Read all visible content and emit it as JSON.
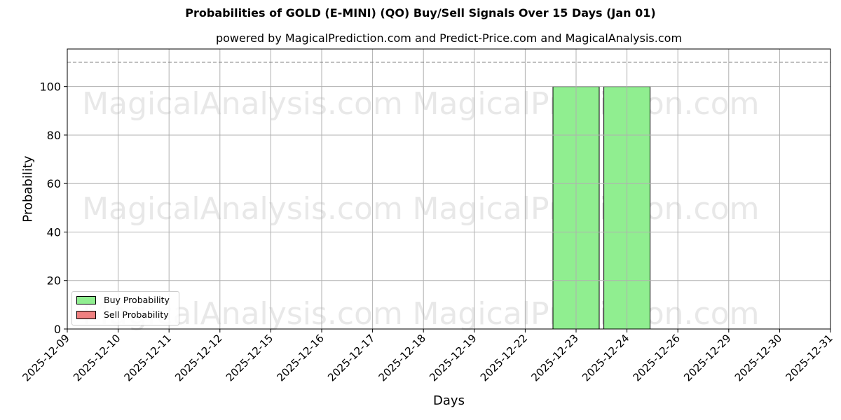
{
  "chart_data": {
    "type": "bar",
    "title": "Probabilities of GOLD (E-MINI) (QO) Buy/Sell Signals Over 15 Days (Jan 01)",
    "subtitle": "powered by MagicalPrediction.com and Predict-Price.com and MagicalAnalysis.com",
    "xlabel": "Days",
    "ylabel": "Probability",
    "ylim": [
      0,
      115.5
    ],
    "yticks": [
      0,
      20,
      40,
      60,
      80,
      100
    ],
    "reference_line": {
      "y": 110,
      "style": "dashed",
      "color": "#808080"
    },
    "grid": true,
    "legend_position": "lower left",
    "categories": [
      "2025-12-09",
      "2025-12-10",
      "2025-12-11",
      "2025-12-12",
      "2025-12-15",
      "2025-12-16",
      "2025-12-17",
      "2025-12-18",
      "2025-12-19",
      "2025-12-22",
      "2025-12-23",
      "2025-12-24",
      "2025-12-26",
      "2025-12-29",
      "2025-12-30",
      "2025-12-31"
    ],
    "series": [
      {
        "name": "Buy Probability",
        "color": "#90ee90",
        "values": [
          0,
          0,
          0,
          0,
          0,
          0,
          0,
          0,
          0,
          0,
          100,
          100,
          0,
          0,
          0,
          0
        ]
      },
      {
        "name": "Sell Probability",
        "color": "#f08080",
        "values": [
          0,
          0,
          0,
          0,
          0,
          0,
          0,
          0,
          0,
          0,
          0,
          0,
          0,
          0,
          0,
          0
        ]
      }
    ],
    "watermarks": [
      "MagicalAnalysis.com",
      "MagicalPrediction.com"
    ]
  },
  "legend": {
    "buy_label": "Buy Probability",
    "sell_label": "Sell Probability"
  }
}
